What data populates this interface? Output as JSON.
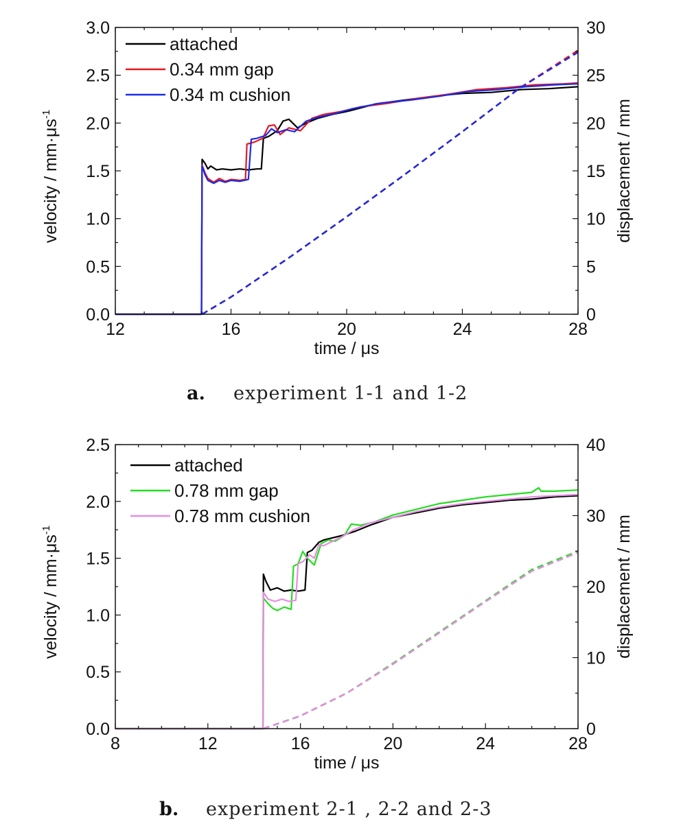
{
  "chart_data": [
    {
      "type": "line",
      "caption_letter": "a.",
      "caption_text": "experiment 1-1 and 1-2",
      "xlabel": "time / μs",
      "ylabel": "velocity / mm·μs",
      "ylabel_sup": "-1",
      "y2label": "displacement / mm",
      "xlim": [
        12,
        28
      ],
      "ylim": [
        0,
        3.0
      ],
      "y2lim": [
        0,
        30
      ],
      "xticks": [
        12,
        16,
        20,
        24,
        28
      ],
      "xtick_labels": [
        "12",
        "16",
        "20",
        "24",
        "28"
      ],
      "yticks": [
        0,
        0.5,
        1.0,
        1.5,
        2.0,
        2.5,
        3.0
      ],
      "ytick_labels": [
        "0.0",
        "0.5",
        "1.0",
        "1.5",
        "2.0",
        "2.5",
        "3.0"
      ],
      "y2ticks": [
        0,
        5,
        10,
        15,
        20,
        25,
        30
      ],
      "y2tick_labels": [
        "0",
        "5",
        "10",
        "15",
        "20",
        "25",
        "30"
      ],
      "legend_position": "top-left",
      "grid": false,
      "series": [
        {
          "name": "attached",
          "color": "#000000",
          "velocity": [
            [
              12,
              0
            ],
            [
              14.98,
              0
            ],
            [
              15.0,
              1.62
            ],
            [
              15.1,
              1.58
            ],
            [
              15.2,
              1.52
            ],
            [
              15.3,
              1.55
            ],
            [
              15.5,
              1.51
            ],
            [
              15.7,
              1.52
            ],
            [
              16.0,
              1.51
            ],
            [
              16.3,
              1.52
            ],
            [
              16.6,
              1.51
            ],
            [
              16.9,
              1.52
            ],
            [
              17.05,
              1.52
            ],
            [
              17.12,
              1.84
            ],
            [
              17.3,
              1.86
            ],
            [
              17.6,
              1.92
            ],
            [
              17.8,
              2.02
            ],
            [
              18.0,
              2.04
            ],
            [
              18.3,
              1.95
            ],
            [
              18.6,
              2.0
            ],
            [
              19.0,
              2.05
            ],
            [
              19.5,
              2.09
            ],
            [
              20.0,
              2.12
            ],
            [
              21.0,
              2.2
            ],
            [
              22.0,
              2.24
            ],
            [
              23.0,
              2.28
            ],
            [
              24.0,
              2.31
            ],
            [
              25.0,
              2.32
            ],
            [
              26.0,
              2.35
            ],
            [
              27.0,
              2.36
            ],
            [
              28.0,
              2.38
            ]
          ],
          "displacement": [
            [
              15.0,
              0
            ],
            [
              16,
              1.8
            ],
            [
              18,
              5.9
            ],
            [
              20,
              10.2
            ],
            [
              22,
              14.6
            ],
            [
              24,
              19.1
            ],
            [
              26,
              23.7
            ],
            [
              28,
              27.5
            ]
          ]
        },
        {
          "name": "0.34 mm gap",
          "color": "#e8171c",
          "velocity": [
            [
              12,
              0
            ],
            [
              14.98,
              0
            ],
            [
              15.0,
              1.56
            ],
            [
              15.1,
              1.48
            ],
            [
              15.2,
              1.42
            ],
            [
              15.4,
              1.38
            ],
            [
              15.6,
              1.42
            ],
            [
              15.8,
              1.39
            ],
            [
              16.0,
              1.41
            ],
            [
              16.3,
              1.4
            ],
            [
              16.5,
              1.41
            ],
            [
              16.55,
              1.78
            ],
            [
              16.8,
              1.8
            ],
            [
              17.1,
              1.84
            ],
            [
              17.3,
              1.97
            ],
            [
              17.5,
              1.98
            ],
            [
              17.7,
              1.88
            ],
            [
              18.0,
              1.95
            ],
            [
              18.4,
              1.92
            ],
            [
              18.8,
              2.05
            ],
            [
              19.2,
              2.09
            ],
            [
              19.8,
              2.12
            ],
            [
              20.5,
              2.17
            ],
            [
              21.5,
              2.21
            ],
            [
              22.5,
              2.26
            ],
            [
              23.5,
              2.3
            ],
            [
              24.5,
              2.35
            ],
            [
              25.5,
              2.37
            ],
            [
              26.5,
              2.4
            ],
            [
              27.5,
              2.41
            ],
            [
              28,
              2.42
            ]
          ],
          "displacement": [
            [
              15.0,
              0
            ],
            [
              16,
              1.8
            ],
            [
              18,
              5.9
            ],
            [
              20,
              10.2
            ],
            [
              22,
              14.6
            ],
            [
              24,
              19.1
            ],
            [
              26,
              23.7
            ],
            [
              28,
              27.6
            ]
          ]
        },
        {
          "name": "0.34 m cushion",
          "color": "#1d2ae6",
          "velocity": [
            [
              12,
              0
            ],
            [
              14.98,
              0
            ],
            [
              15.0,
              1.55
            ],
            [
              15.1,
              1.46
            ],
            [
              15.2,
              1.4
            ],
            [
              15.4,
              1.37
            ],
            [
              15.6,
              1.4
            ],
            [
              15.8,
              1.38
            ],
            [
              16.0,
              1.4
            ],
            [
              16.3,
              1.39
            ],
            [
              16.6,
              1.41
            ],
            [
              16.7,
              1.83
            ],
            [
              16.9,
              1.84
            ],
            [
              17.2,
              1.87
            ],
            [
              17.4,
              1.94
            ],
            [
              17.6,
              1.9
            ],
            [
              17.9,
              1.93
            ],
            [
              18.2,
              1.91
            ],
            [
              18.6,
              2.02
            ],
            [
              19.0,
              2.06
            ],
            [
              19.6,
              2.1
            ],
            [
              20.2,
              2.15
            ],
            [
              21.2,
              2.21
            ],
            [
              22.2,
              2.24
            ],
            [
              23.2,
              2.28
            ],
            [
              24.2,
              2.33
            ],
            [
              25.2,
              2.35
            ],
            [
              26.2,
              2.38
            ],
            [
              27.2,
              2.4
            ],
            [
              28,
              2.41
            ]
          ],
          "displacement": [
            [
              15.0,
              0
            ],
            [
              16,
              1.8
            ],
            [
              18,
              5.9
            ],
            [
              20,
              10.2
            ],
            [
              22,
              14.6
            ],
            [
              24,
              19.1
            ],
            [
              26,
              23.7
            ],
            [
              28,
              27.4
            ]
          ]
        }
      ]
    },
    {
      "type": "line",
      "caption_letter": "b.",
      "caption_text": "experiment 2-1 , 2-2 and 2-3",
      "xlabel": "time / μs",
      "ylabel": "velocity / mm·μs",
      "ylabel_sup": "-1",
      "y2label": "displacement / mm",
      "xlim": [
        8,
        28
      ],
      "ylim": [
        0,
        2.5
      ],
      "y2lim": [
        0,
        40
      ],
      "xticks": [
        8,
        12,
        16,
        20,
        24,
        28
      ],
      "xtick_labels": [
        "8",
        "12",
        "16",
        "20",
        "24",
        "28"
      ],
      "yticks": [
        0,
        0.5,
        1.0,
        1.5,
        2.0,
        2.5
      ],
      "ytick_labels": [
        "0.0",
        "0.5",
        "1.0",
        "1.5",
        "2.0",
        "2.5"
      ],
      "y2ticks": [
        0,
        10,
        20,
        30,
        40
      ],
      "y2tick_labels": [
        "0",
        "10",
        "20",
        "30",
        "40"
      ],
      "legend_position": "top-left",
      "grid": false,
      "series": [
        {
          "name": "attached",
          "color": "#000000",
          "velocity": [
            [
              8,
              0
            ],
            [
              14.38,
              0
            ],
            [
              14.4,
              1.36
            ],
            [
              14.5,
              1.3
            ],
            [
              14.7,
              1.22
            ],
            [
              15.0,
              1.24
            ],
            [
              15.3,
              1.21
            ],
            [
              15.6,
              1.22
            ],
            [
              15.9,
              1.21
            ],
            [
              16.2,
              1.22
            ],
            [
              16.3,
              1.55
            ],
            [
              16.5,
              1.57
            ],
            [
              16.8,
              1.64
            ],
            [
              17.0,
              1.66
            ],
            [
              17.4,
              1.68
            ],
            [
              17.8,
              1.7
            ],
            [
              18.4,
              1.74
            ],
            [
              19.0,
              1.79
            ],
            [
              20.0,
              1.86
            ],
            [
              21.0,
              1.9
            ],
            [
              22.0,
              1.94
            ],
            [
              23.0,
              1.97
            ],
            [
              24.0,
              1.99
            ],
            [
              25.0,
              2.01
            ],
            [
              26.0,
              2.02
            ],
            [
              27.0,
              2.04
            ],
            [
              28,
              2.05
            ]
          ],
          "displacement": [
            [
              14.4,
              0
            ],
            [
              16,
              1.8
            ],
            [
              18,
              5.0
            ],
            [
              20,
              9.1
            ],
            [
              22,
              13.5
            ],
            [
              24,
              17.9
            ],
            [
              26,
              22.2
            ],
            [
              28,
              24.8
            ]
          ]
        },
        {
          "name": "0.78 mm gap",
          "color": "#22dd1f",
          "velocity": [
            [
              8,
              0
            ],
            [
              14.38,
              0
            ],
            [
              14.4,
              1.15
            ],
            [
              14.6,
              1.1
            ],
            [
              14.8,
              1.06
            ],
            [
              15.0,
              1.04
            ],
            [
              15.3,
              1.07
            ],
            [
              15.6,
              1.05
            ],
            [
              15.7,
              1.43
            ],
            [
              15.9,
              1.45
            ],
            [
              16.1,
              1.56
            ],
            [
              16.3,
              1.5
            ],
            [
              16.6,
              1.44
            ],
            [
              16.9,
              1.63
            ],
            [
              17.2,
              1.66
            ],
            [
              17.5,
              1.65
            ],
            [
              17.9,
              1.7
            ],
            [
              18.2,
              1.8
            ],
            [
              18.6,
              1.79
            ],
            [
              19.2,
              1.82
            ],
            [
              20.0,
              1.88
            ],
            [
              21.0,
              1.93
            ],
            [
              22.0,
              1.98
            ],
            [
              23.0,
              2.01
            ],
            [
              24.0,
              2.04
            ],
            [
              25.0,
              2.06
            ],
            [
              26.0,
              2.08
            ],
            [
              26.3,
              2.12
            ],
            [
              26.4,
              2.09
            ],
            [
              27.0,
              2.09
            ],
            [
              28,
              2.1
            ]
          ],
          "displacement": [
            [
              14.4,
              0
            ],
            [
              16,
              1.8
            ],
            [
              18,
              5.0
            ],
            [
              20,
              9.2
            ],
            [
              22,
              13.6
            ],
            [
              24,
              18.0
            ],
            [
              26,
              22.4
            ],
            [
              28,
              25.0
            ]
          ]
        },
        {
          "name": "0.78 mm cushion",
          "color": "#e58ee2",
          "velocity": [
            [
              8,
              0
            ],
            [
              14.38,
              0
            ],
            [
              14.4,
              1.2
            ],
            [
              14.6,
              1.14
            ],
            [
              14.9,
              1.12
            ],
            [
              15.2,
              1.14
            ],
            [
              15.5,
              1.12
            ],
            [
              15.8,
              1.13
            ],
            [
              15.9,
              1.45
            ],
            [
              16.1,
              1.47
            ],
            [
              16.4,
              1.53
            ],
            [
              16.6,
              1.5
            ],
            [
              16.8,
              1.62
            ],
            [
              17.0,
              1.61
            ],
            [
              17.3,
              1.64
            ],
            [
              17.8,
              1.69
            ],
            [
              18.3,
              1.75
            ],
            [
              19.0,
              1.81
            ],
            [
              20.0,
              1.86
            ],
            [
              21.0,
              1.91
            ],
            [
              22.0,
              1.95
            ],
            [
              23.0,
              1.98
            ],
            [
              24.0,
              2.0
            ],
            [
              25.0,
              2.02
            ],
            [
              26.0,
              2.04
            ],
            [
              27.0,
              2.05
            ],
            [
              28,
              2.06
            ]
          ],
          "displacement": [
            [
              14.4,
              0
            ],
            [
              16,
              1.8
            ],
            [
              18,
              5.0
            ],
            [
              20,
              9.1
            ],
            [
              22,
              13.5
            ],
            [
              24,
              17.9
            ],
            [
              26,
              22.2
            ],
            [
              28,
              24.8
            ]
          ]
        }
      ]
    }
  ]
}
